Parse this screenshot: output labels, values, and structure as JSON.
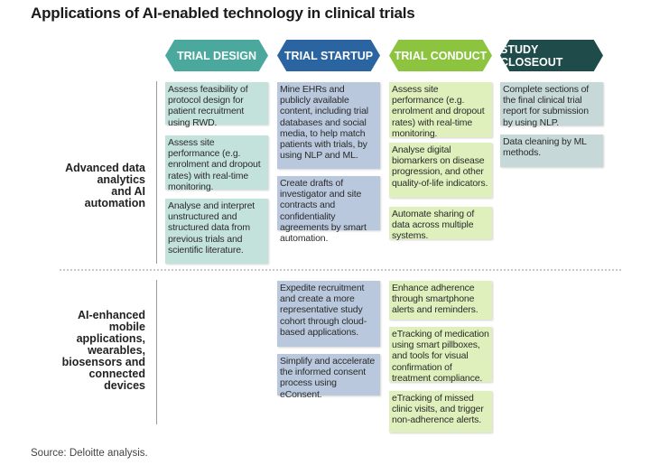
{
  "title": "Applications of AI-enabled technology in clinical trials",
  "phases": [
    "TRIAL DESIGN",
    "TRIAL STARTUP",
    "TRIAL CONDUCT",
    "STUDY CLOSEOUT"
  ],
  "rows": [
    {
      "label_lines": [
        "Advanced data",
        "analytics",
        "and AI",
        "automation"
      ]
    },
    {
      "label_lines": [
        "AI-enhanced",
        "mobile",
        "applications,",
        "wearables,",
        "biosensors and",
        "connected",
        "devices"
      ]
    }
  ],
  "cards": {
    "r1_design_1": "Assess feasibility of protocol design for patient recruitment using RWD.",
    "r1_design_2": "Assess site performance (e.g. enrolment and dropout rates) with real-time monitoring.",
    "r1_design_3": "Analyse and interpret unstructured and structured data from previous trials and scientific literature.",
    "r1_startup_1": "Mine EHRs and publicly available content, including trial databases and social media, to help match patients with trials, by using NLP and ML.",
    "r1_startup_2": "Create drafts of investigator and site contracts and confidentiality agreements by smart automation.",
    "r1_conduct_1": "Assess site performance (e.g. enrolment and dropout rates) with real-time monitoring.",
    "r1_conduct_2": "Analyse digital biomarkers on disease progression, and other quality-of-life indicators.",
    "r1_conduct_3": "Automate sharing of data across multiple systems.",
    "r1_closeout_1": "Complete sections of the final clinical trial report for submission by using NLP.",
    "r1_closeout_2": "Data cleaning by ML methods.",
    "r2_startup_1": "Expedite recruitment and create a more representative study cohort through cloud-based applications.",
    "r2_startup_2": "Simplify and accelerate the informed consent process using eConsent.",
    "r2_conduct_1": "Enhance adherence through smartphone alerts and reminders.",
    "r2_conduct_2": "eTracking of medication using smart pillboxes, and tools for visual confirmation of treatment compliance.",
    "r2_conduct_3": "eTracking of missed clinic visits, and trigger non-adherence alerts."
  },
  "source": "Source: Deloitte analysis.",
  "colors": {
    "design": "#4aa89d",
    "startup": "#2a64a1",
    "conduct": "#8cc43f",
    "closeout": "#1f4c4a"
  }
}
